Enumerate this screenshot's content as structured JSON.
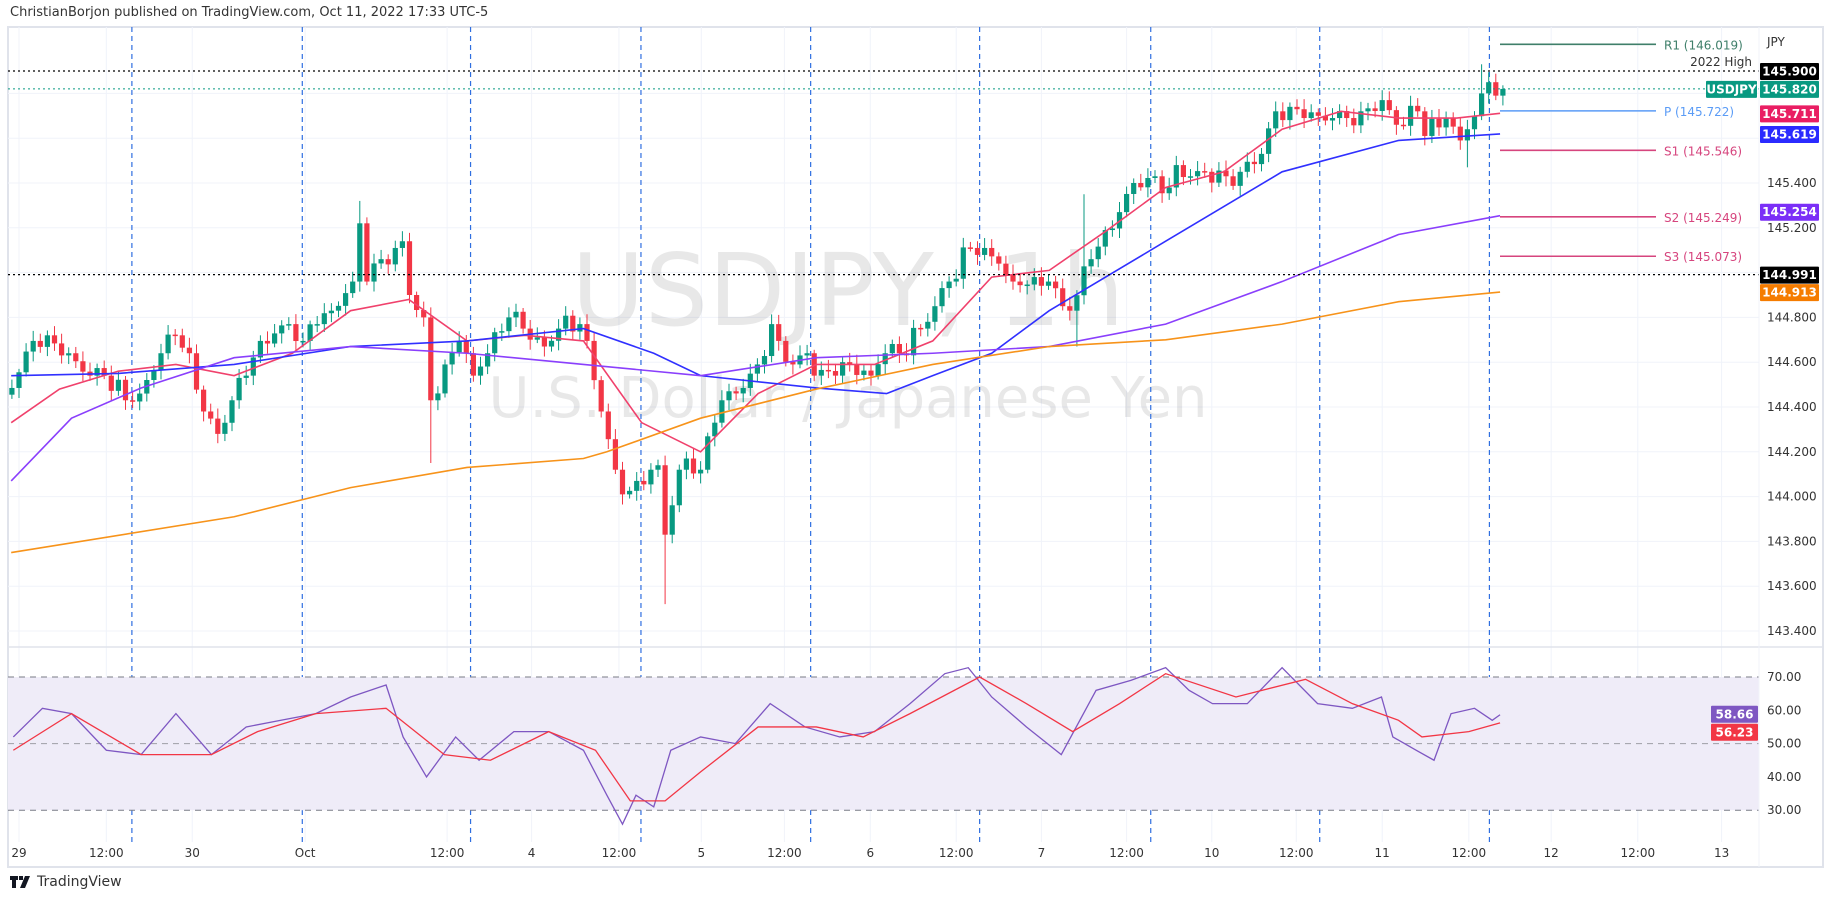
{
  "header": {
    "published": "ChristianBorjon published on TradingView.com, Oct 11, 2022 17:33 UTC-5"
  },
  "footer": {
    "brand": "TradingView"
  },
  "colors": {
    "up": "#089981",
    "down": "#f23645",
    "ma20": "#f0416c",
    "ma50": "#3030ff",
    "ma100": "#8a3ffc",
    "ma200": "#f7931a",
    "rsi": "#7e57c2",
    "rsi_ma": "#f23645",
    "session": "#2f6fe0",
    "rsi_band": "#efecf8"
  },
  "chart_data": {
    "type": "candlestick",
    "symbol": "USDJPY",
    "watermark": "USDJPY, 1h",
    "watermark_sub": "U.S. Dollar / Japanese Yen",
    "currency": "JPY",
    "x_unit": "hours since Sep 29 00:00 (trading bars)",
    "time_labels": [
      {
        "t": 0,
        "label": "29"
      },
      {
        "t": 12.3,
        "label": "12:00"
      },
      {
        "t": 24.4,
        "label": "30"
      },
      {
        "t": 40.3,
        "label": "Oct"
      },
      {
        "t": 60.3,
        "label": "12:00"
      },
      {
        "t": 72.2,
        "label": "4"
      },
      {
        "t": 84.5,
        "label": "12:00"
      },
      {
        "t": 96.1,
        "label": "5"
      },
      {
        "t": 107.8,
        "label": "12:00"
      },
      {
        "t": 119.9,
        "label": "6"
      },
      {
        "t": 132,
        "label": "12:00"
      },
      {
        "t": 144,
        "label": "7"
      },
      {
        "t": 156,
        "label": "12:00"
      },
      {
        "t": 168,
        "label": "10"
      },
      {
        "t": 179.9,
        "label": "12:00"
      },
      {
        "t": 192,
        "label": "11"
      },
      {
        "t": 204.2,
        "label": "12:00"
      },
      {
        "t": 215.8,
        "label": "12"
      },
      {
        "t": 228,
        "label": "12:00"
      },
      {
        "t": 239.8,
        "label": "13"
      }
    ],
    "session_lines_t": [
      15.9,
      39.9,
      63.6,
      87.6,
      111.5,
      135.3,
      159.4,
      183.2,
      207.1
    ],
    "price_ticks": [
      "143.400",
      "143.600",
      "143.800",
      "144.000",
      "144.200",
      "144.400",
      "144.600",
      "144.800",
      "145.200",
      "145.400"
    ],
    "ylim": [
      143.3,
      146.1
    ],
    "close_keypoints": [
      [
        -1,
        144.485
      ],
      [
        2,
        144.695
      ],
      [
        4,
        144.72
      ],
      [
        7,
        144.64
      ],
      [
        10,
        144.54
      ],
      [
        12,
        144.54
      ],
      [
        15,
        144.43
      ],
      [
        17,
        144.46
      ],
      [
        20,
        144.64
      ],
      [
        22,
        144.72
      ],
      [
        24,
        144.64
      ],
      [
        26,
        144.38
      ],
      [
        28,
        144.28
      ],
      [
        30,
        144.43
      ],
      [
        32,
        144.54
      ],
      [
        34,
        144.695
      ],
      [
        38,
        144.77
      ],
      [
        40,
        144.695
      ],
      [
        42,
        144.77
      ],
      [
        44,
        144.83
      ],
      [
        47,
        144.96
      ],
      [
        48,
        145.22
      ],
      [
        49,
        144.96
      ],
      [
        51,
        145.06
      ],
      [
        53,
        145.11
      ],
      [
        54,
        145.14
      ],
      [
        55,
        144.9
      ],
      [
        57,
        144.8
      ],
      [
        58,
        144.43
      ],
      [
        60,
        144.59
      ],
      [
        62,
        144.695
      ],
      [
        64,
        144.54
      ],
      [
        66,
        144.64
      ],
      [
        69,
        144.8
      ],
      [
        71,
        144.75
      ],
      [
        74,
        144.67
      ],
      [
        76,
        144.75
      ],
      [
        79,
        144.77
      ],
      [
        80,
        144.695
      ],
      [
        82,
        144.38
      ],
      [
        84,
        144.12
      ],
      [
        85,
        144.01
      ],
      [
        87,
        144.07
      ],
      [
        89,
        144.12
      ],
      [
        90,
        144.14
      ],
      [
        91,
        143.83
      ],
      [
        93,
        144.12
      ],
      [
        94,
        144.17
      ],
      [
        96,
        144.12
      ],
      [
        98,
        144.33
      ],
      [
        99,
        144.43
      ],
      [
        102,
        144.485
      ],
      [
        104,
        144.59
      ],
      [
        106,
        144.77
      ],
      [
        107,
        144.695
      ],
      [
        109,
        144.59
      ],
      [
        111,
        144.64
      ],
      [
        112,
        144.54
      ],
      [
        115,
        144.54
      ],
      [
        117,
        144.59
      ],
      [
        120,
        144.54
      ],
      [
        122,
        144.64
      ],
      [
        124,
        144.64
      ],
      [
        127,
        144.75
      ],
      [
        129,
        144.85
      ],
      [
        131,
        144.96
      ],
      [
        134,
        145.11
      ],
      [
        136,
        145.11
      ],
      [
        138,
        145.04
      ],
      [
        140,
        144.96
      ],
      [
        143,
        144.98
      ],
      [
        145,
        144.96
      ],
      [
        147,
        144.85
      ],
      [
        148,
        144.83
      ],
      [
        151,
        145.06
      ],
      [
        153,
        145.19
      ],
      [
        155,
        145.27
      ],
      [
        157,
        145.4
      ],
      [
        160,
        145.43
      ],
      [
        162,
        145.38
      ],
      [
        163,
        145.48
      ],
      [
        165,
        145.43
      ],
      [
        167,
        145.45
      ],
      [
        170,
        145.43
      ],
      [
        172,
        145.45
      ],
      [
        175,
        145.53
      ],
      [
        177,
        145.72
      ],
      [
        179,
        145.74
      ],
      [
        181,
        145.69
      ],
      [
        185,
        145.69
      ],
      [
        187,
        145.69
      ],
      [
        189,
        145.72
      ],
      [
        192,
        145.77
      ],
      [
        194,
        145.66
      ],
      [
        197,
        145.72
      ],
      [
        198,
        145.61
      ],
      [
        201,
        145.69
      ],
      [
        203,
        145.59
      ],
      [
        204,
        145.64
      ],
      [
        206,
        145.8
      ],
      [
        207,
        145.85
      ],
      [
        208,
        145.79
      ],
      [
        209,
        145.82
      ]
    ],
    "wick_extremes": [
      [
        48,
        "high",
        145.32
      ],
      [
        58,
        "low",
        144.15
      ],
      [
        91,
        "low",
        143.52
      ],
      [
        150,
        "high",
        145.35
      ],
      [
        149,
        "low",
        144.67
      ],
      [
        206,
        "high",
        145.93
      ],
      [
        204,
        "low",
        145.47
      ]
    ],
    "moving_averages": [
      {
        "name": "MA20",
        "color_key": "ma20",
        "last": "145.711",
        "points": [
          [
            -1.1,
            144.33
          ],
          [
            5.7,
            144.48
          ],
          [
            14,
            144.56
          ],
          [
            22.1,
            144.59
          ],
          [
            30.3,
            144.54
          ],
          [
            38.5,
            144.64
          ],
          [
            46.7,
            144.83
          ],
          [
            54.9,
            144.88
          ],
          [
            63.1,
            144.695
          ],
          [
            71.3,
            144.72
          ],
          [
            79.5,
            144.695
          ],
          [
            87.7,
            144.33
          ],
          [
            96,
            144.2
          ],
          [
            104.1,
            144.46
          ],
          [
            112.3,
            144.59
          ],
          [
            120.5,
            144.59
          ],
          [
            128.7,
            144.695
          ],
          [
            137,
            144.98
          ],
          [
            145.1,
            145.01
          ],
          [
            153.3,
            145.19
          ],
          [
            161.5,
            145.38
          ],
          [
            169.7,
            145.45
          ],
          [
            177.9,
            145.64
          ],
          [
            186.2,
            145.72
          ],
          [
            194.3,
            145.69
          ],
          [
            202.5,
            145.69
          ],
          [
            208.6,
            145.711
          ]
        ]
      },
      {
        "name": "MA50",
        "color_key": "ma50",
        "last": "145.619",
        "points": [
          [
            -1.1,
            144.54
          ],
          [
            14,
            144.55
          ],
          [
            30.3,
            144.59
          ],
          [
            46.7,
            144.67
          ],
          [
            63.1,
            144.695
          ],
          [
            79.5,
            144.75
          ],
          [
            89.4,
            144.64
          ],
          [
            96,
            144.54
          ],
          [
            112.3,
            144.485
          ],
          [
            122.2,
            144.46
          ],
          [
            128.7,
            144.54
          ],
          [
            137,
            144.64
          ],
          [
            145.1,
            144.83
          ],
          [
            161.5,
            145.14
          ],
          [
            177.9,
            145.45
          ],
          [
            194.3,
            145.59
          ],
          [
            208.6,
            145.619
          ]
        ]
      },
      {
        "name": "MA100",
        "color_key": "ma100",
        "last": "145.254",
        "points": [
          [
            -1.1,
            144.07
          ],
          [
            7.4,
            144.35
          ],
          [
            17.2,
            144.485
          ],
          [
            30.3,
            144.62
          ],
          [
            46.7,
            144.67
          ],
          [
            63.1,
            144.64
          ],
          [
            79.5,
            144.59
          ],
          [
            96,
            144.54
          ],
          [
            112.3,
            144.62
          ],
          [
            128.7,
            144.64
          ],
          [
            145.1,
            144.67
          ],
          [
            161.5,
            144.77
          ],
          [
            177.9,
            144.96
          ],
          [
            194.3,
            145.17
          ],
          [
            208.6,
            145.254
          ]
        ]
      },
      {
        "name": "MA200",
        "color_key": "ma200",
        "last": "144.913",
        "points": [
          [
            -1.1,
            143.75
          ],
          [
            30.3,
            143.91
          ],
          [
            46.7,
            144.04
          ],
          [
            63.1,
            144.13
          ],
          [
            79.5,
            144.17
          ],
          [
            82.8,
            144.2
          ],
          [
            96,
            144.35
          ],
          [
            112.3,
            144.48
          ],
          [
            128.7,
            144.59
          ],
          [
            145.1,
            144.67
          ],
          [
            161.5,
            144.7
          ],
          [
            177.9,
            144.77
          ],
          [
            194.3,
            144.87
          ],
          [
            208.6,
            144.913
          ]
        ]
      }
    ],
    "pivots": [
      {
        "label": "R1 (146.019)",
        "value": 146.019,
        "color": "#3f7f6a"
      },
      {
        "label": "P (145.722)",
        "value": 145.722,
        "color": "#5b9cf6"
      },
      {
        "label": "S1 (145.546)",
        "value": 145.546,
        "color": "#d6457e"
      },
      {
        "label": "S2 (145.249)",
        "value": 145.249,
        "color": "#d6457e"
      },
      {
        "label": "S3 (145.073)",
        "value": 145.073,
        "color": "#d6457e"
      }
    ],
    "horizontal_levels": [
      {
        "value": 145.9,
        "label": "2022 High",
        "badge": "145.900",
        "color": "#000000"
      },
      {
        "value": 144.991,
        "label": "",
        "badge": "144.991",
        "color": "#000000"
      }
    ],
    "last_price": {
      "symbol_badge": "USDJPY",
      "value": 145.82,
      "badge": "145.820"
    },
    "rsi": {
      "ticks": [
        "70.00",
        "60.00",
        "50.00",
        "40.00",
        "30.00"
      ],
      "ylim": [
        22,
        80
      ],
      "bands": [
        70,
        50,
        30
      ],
      "rsi_last": "58.66",
      "ma_last": "56.23",
      "rsi_points": [
        [
          -0.8,
          52
        ],
        [
          3.3,
          60.6
        ],
        [
          7.4,
          59
        ],
        [
          12.3,
          48
        ],
        [
          17.2,
          46.7
        ],
        [
          22.1,
          59
        ],
        [
          27.1,
          46.7
        ],
        [
          32,
          55
        ],
        [
          36.9,
          57
        ],
        [
          41.8,
          59
        ],
        [
          46.7,
          64
        ],
        [
          51.7,
          67.6
        ],
        [
          54.1,
          52
        ],
        [
          57.4,
          40
        ],
        [
          61.5,
          52
        ],
        [
          64.8,
          45
        ],
        [
          69.7,
          53.6
        ],
        [
          74.6,
          53.6
        ],
        [
          79.5,
          48
        ],
        [
          82.8,
          34.5
        ],
        [
          85,
          25.8
        ],
        [
          86.9,
          34.5
        ],
        [
          89.4,
          31
        ],
        [
          91.8,
          48
        ],
        [
          96,
          52
        ],
        [
          100.9,
          50
        ],
        [
          105.8,
          62
        ],
        [
          110.7,
          55
        ],
        [
          115.6,
          52
        ],
        [
          120.5,
          53.6
        ],
        [
          125.5,
          62
        ],
        [
          130.4,
          71
        ],
        [
          133.7,
          72.8
        ],
        [
          137,
          64
        ],
        [
          141.9,
          55
        ],
        [
          146.8,
          46.7
        ],
        [
          151.7,
          66
        ],
        [
          156.6,
          69
        ],
        [
          161.5,
          72.8
        ],
        [
          164.8,
          66
        ],
        [
          168.1,
          62
        ],
        [
          173,
          62
        ],
        [
          177.9,
          72.8
        ],
        [
          182.9,
          62
        ],
        [
          187.8,
          60.6
        ],
        [
          191.9,
          64
        ],
        [
          193.5,
          52
        ],
        [
          196.8,
          48
        ],
        [
          199.3,
          45
        ],
        [
          201.7,
          59
        ],
        [
          205,
          60.6
        ],
        [
          207.5,
          57
        ],
        [
          208.6,
          58.66
        ]
      ],
      "ma_points": [
        [
          -0.8,
          48
        ],
        [
          7.4,
          59
        ],
        [
          17.2,
          46.7
        ],
        [
          27.1,
          46.7
        ],
        [
          33.6,
          53.6
        ],
        [
          41.8,
          59
        ],
        [
          51.7,
          60.6
        ],
        [
          59.9,
          46.7
        ],
        [
          66.4,
          45
        ],
        [
          74.6,
          53.6
        ],
        [
          81.2,
          48
        ],
        [
          86.1,
          32.8
        ],
        [
          91,
          32.8
        ],
        [
          96,
          41.5
        ],
        [
          104.1,
          55
        ],
        [
          112.3,
          55
        ],
        [
          118.9,
          52
        ],
        [
          125.5,
          59
        ],
        [
          135.3,
          70
        ],
        [
          141.9,
          62
        ],
        [
          148.4,
          53.6
        ],
        [
          155,
          62
        ],
        [
          161.5,
          71
        ],
        [
          171.4,
          64
        ],
        [
          181.2,
          69.3
        ],
        [
          187.8,
          62
        ],
        [
          194.3,
          57
        ],
        [
          197.6,
          52
        ],
        [
          204.2,
          53.6
        ],
        [
          208.6,
          56.23
        ]
      ]
    }
  }
}
